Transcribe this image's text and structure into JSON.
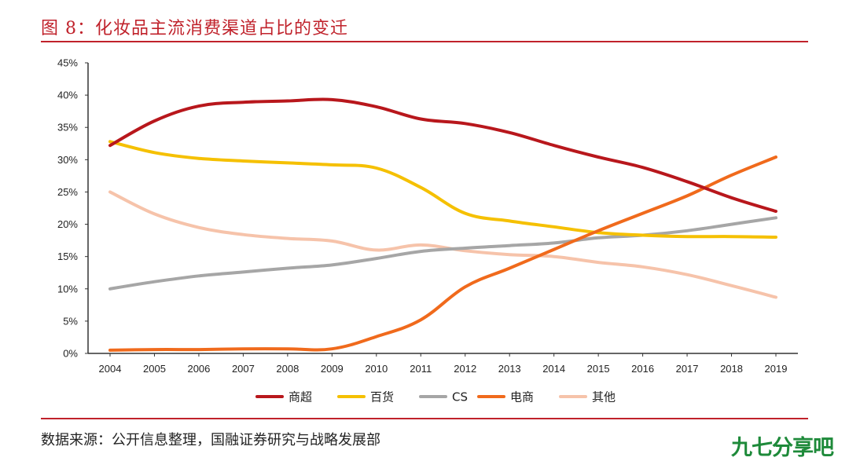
{
  "figure": {
    "title": "图 8：化妆品主流消费渠道占比的变迁",
    "source": "数据来源：公开信息整理，国融证券研究与战略发展部",
    "watermark": "九七分享吧"
  },
  "colors": {
    "accent": "#c0222b",
    "axis": "#333333",
    "watermark": "#1e8a3a"
  },
  "chart_data": {
    "type": "line",
    "x": [
      "2004",
      "2005",
      "2006",
      "2007",
      "2008",
      "2009",
      "2010",
      "2011",
      "2012",
      "2013",
      "2014",
      "2015",
      "2016",
      "2017",
      "2018",
      "2019"
    ],
    "ylim": [
      0,
      45
    ],
    "yticks": [
      "0%",
      "5%",
      "10%",
      "15%",
      "20%",
      "25%",
      "30%",
      "35%",
      "40%",
      "45%"
    ],
    "grid": false,
    "legend_position": "bottom",
    "series": [
      {
        "name": "商超",
        "color": "#b8171c",
        "values": [
          32.2,
          36.0,
          38.3,
          38.9,
          39.1,
          39.3,
          38.2,
          36.3,
          35.6,
          34.2,
          32.2,
          30.4,
          28.8,
          26.6,
          24.1,
          22.0
        ]
      },
      {
        "name": "百货",
        "color": "#f5c000",
        "values": [
          32.8,
          31.1,
          30.2,
          29.8,
          29.5,
          29.2,
          28.7,
          25.7,
          21.7,
          20.5,
          19.6,
          18.7,
          18.3,
          18.1,
          18.1,
          18.0
        ]
      },
      {
        "name": "CS",
        "color": "#a6a6a6",
        "values": [
          10.0,
          11.1,
          12.0,
          12.6,
          13.2,
          13.7,
          14.7,
          15.8,
          16.3,
          16.7,
          17.1,
          17.9,
          18.3,
          19.0,
          20.0,
          21.0
        ]
      },
      {
        "name": "电商",
        "color": "#f06a1c",
        "values": [
          0.5,
          0.6,
          0.6,
          0.7,
          0.7,
          0.7,
          2.6,
          5.2,
          10.3,
          13.2,
          16.1,
          19.0,
          21.7,
          24.4,
          27.6,
          30.4
        ]
      },
      {
        "name": "其他",
        "color": "#f6c3aa",
        "values": [
          25.0,
          21.6,
          19.5,
          18.4,
          17.8,
          17.4,
          16.0,
          16.8,
          15.9,
          15.3,
          15.0,
          14.1,
          13.4,
          12.2,
          10.5,
          8.7
        ]
      }
    ]
  }
}
